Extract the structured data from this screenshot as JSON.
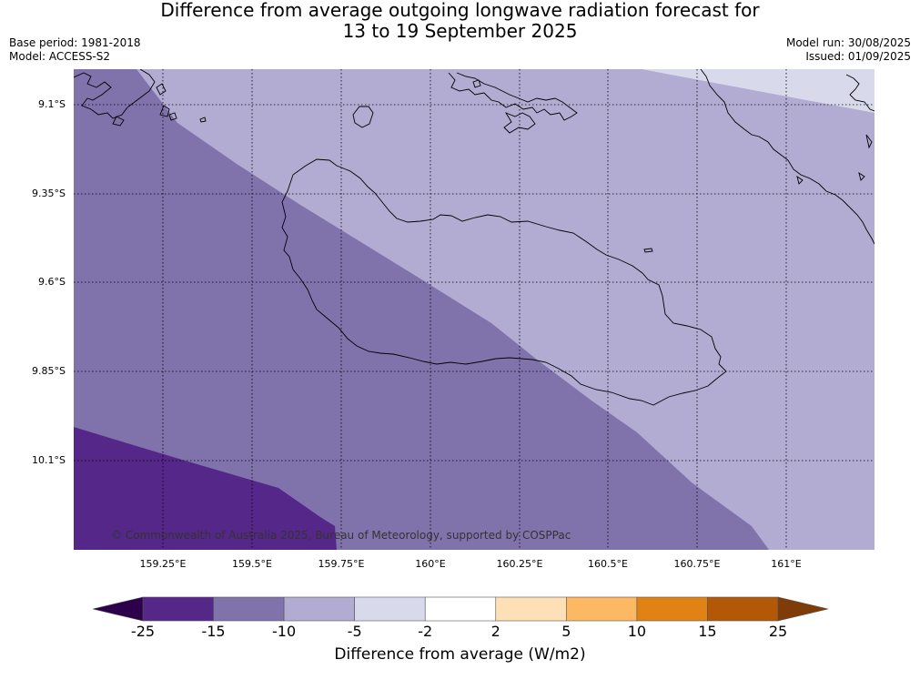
{
  "header": {
    "title_line1": "Difference from average outgoing longwave radiation forecast for",
    "title_line2": "13 to 19 September 2025",
    "base_period": "Base period: 1981-2018",
    "model": "Model: ACCESS-S2",
    "model_run": "Model run: 30/08/2025",
    "issued": "Issued: 01/09/2025"
  },
  "map": {
    "latitude_labels": [
      "9.1°S",
      "9.35°S",
      "9.6°S",
      "9.85°S",
      "10.1°S"
    ],
    "longitude_labels": [
      "159.25°E",
      "159.5°E",
      "159.75°E",
      "160°E",
      "160.25°E",
      "160.5°E",
      "160.75°E",
      "161°E"
    ],
    "copyright": "© Commonwealth of Australia 2025, Bureau of Meteorology, supported by COSPPac",
    "grid_style": "dotted"
  },
  "colorbar": {
    "tick_labels": [
      "-25",
      "-15",
      "-10",
      "-5",
      "-2",
      "2",
      "5",
      "10",
      "15",
      "25"
    ],
    "colors": [
      "#542788",
      "#8073ac",
      "#b2abd2",
      "#d8daeb",
      "#ffffff",
      "#fee0b6",
      "#fdb863",
      "#e08214",
      "#b35806"
    ],
    "under_color": "#2d004b",
    "over_color": "#7f3b08",
    "label": "Difference from average (W/m2)"
  }
}
